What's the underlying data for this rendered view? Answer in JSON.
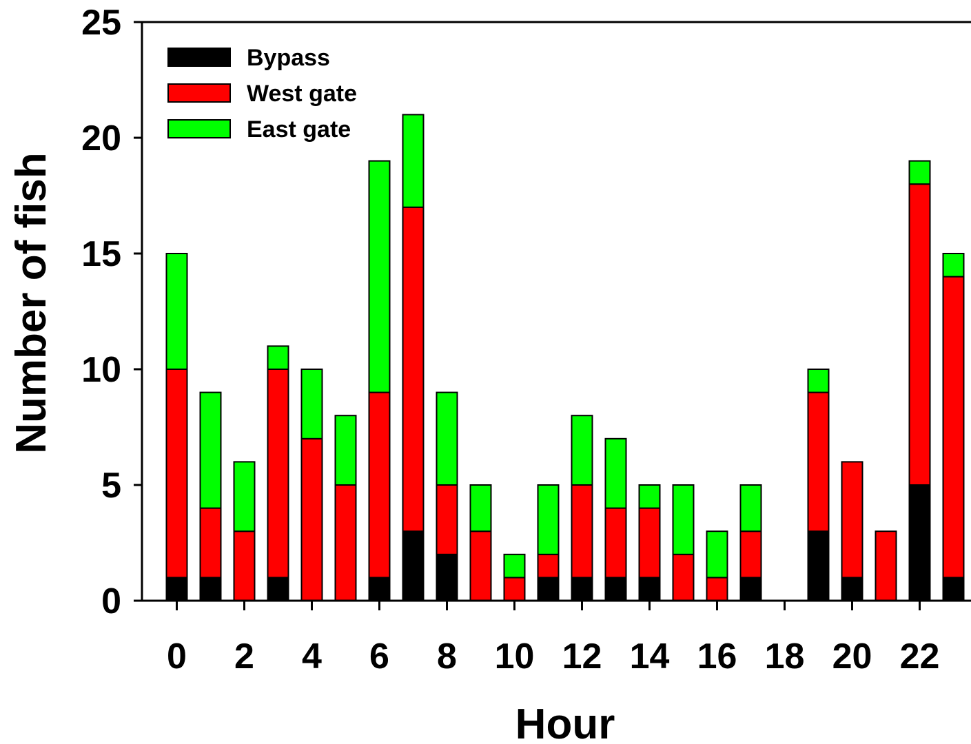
{
  "chart_data": {
    "type": "bar",
    "stacked": true,
    "title": "",
    "xlabel": "Hour",
    "ylabel": "Number of fish",
    "ylim": [
      0,
      25
    ],
    "yticks": [
      0,
      5,
      10,
      15,
      20,
      25
    ],
    "xticks": [
      0,
      2,
      4,
      6,
      8,
      10,
      12,
      14,
      16,
      18,
      20,
      22
    ],
    "categories": [
      0,
      1,
      2,
      3,
      4,
      5,
      6,
      7,
      8,
      9,
      10,
      11,
      12,
      13,
      14,
      15,
      16,
      17,
      18,
      19,
      20,
      21,
      22,
      23
    ],
    "grid": false,
    "legend_position": "top-left",
    "series": [
      {
        "name": "Bypass",
        "color": "#000000",
        "values": [
          1,
          1,
          0,
          1,
          0,
          0,
          1,
          3,
          2,
          0,
          0,
          1,
          1,
          1,
          1,
          0,
          0,
          1,
          0,
          3,
          1,
          0,
          5,
          1
        ]
      },
      {
        "name": "West gate",
        "color": "#ff0000",
        "values": [
          9,
          3,
          3,
          9,
          7,
          5,
          8,
          14,
          3,
          3,
          1,
          1,
          4,
          3,
          3,
          2,
          1,
          2,
          0,
          6,
          5,
          3,
          13,
          13
        ]
      },
      {
        "name": "East gate",
        "color": "#00ff00",
        "values": [
          5,
          5,
          3,
          1,
          3,
          3,
          10,
          4,
          4,
          2,
          1,
          3,
          3,
          3,
          1,
          3,
          2,
          2,
          0,
          1,
          0,
          0,
          1,
          1
        ]
      }
    ]
  }
}
